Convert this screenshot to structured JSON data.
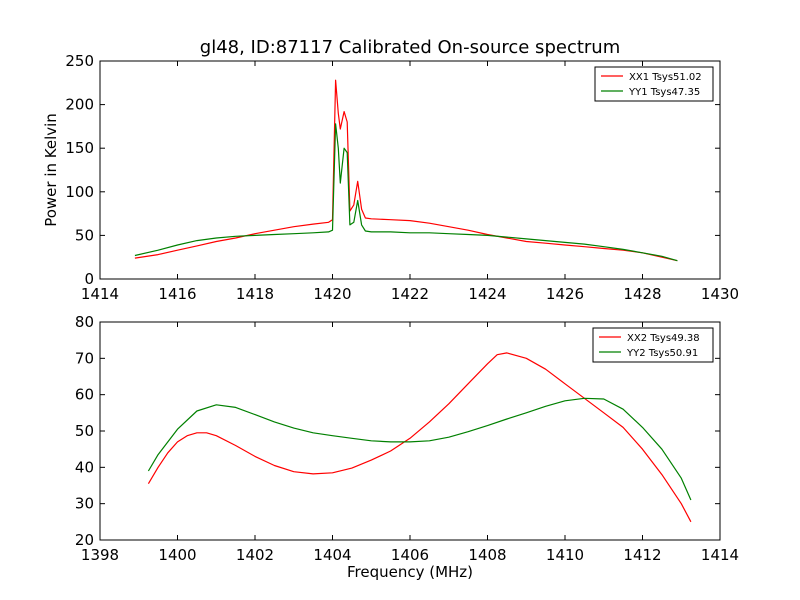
{
  "figure": {
    "title": "gl48, ID:87117 Calibrated On-source spectrum"
  },
  "chart_data": [
    {
      "type": "line",
      "title": "gl48, ID:87117 Calibrated On-source spectrum",
      "xlabel": "",
      "ylabel": "Power in Kelvin",
      "xlim": [
        1414,
        1430
      ],
      "ylim": [
        0,
        250
      ],
      "xticks": [
        1414,
        1416,
        1418,
        1420,
        1422,
        1424,
        1426,
        1428,
        1430
      ],
      "yticks": [
        0,
        50,
        100,
        150,
        200,
        250
      ],
      "grid": false,
      "legend_position": "top-right",
      "series": [
        {
          "name": "XX1 Tsys51.02",
          "color": "#ff0000",
          "x": [
            1414.9,
            1415.5,
            1416,
            1416.5,
            1417,
            1417.5,
            1418,
            1418.5,
            1419,
            1419.5,
            1419.9,
            1420.0,
            1420.08,
            1420.15,
            1420.2,
            1420.3,
            1420.38,
            1420.45,
            1420.55,
            1420.65,
            1420.75,
            1420.85,
            1421,
            1421.5,
            1422,
            1422.5,
            1423,
            1423.5,
            1424,
            1424.5,
            1425,
            1425.5,
            1426,
            1426.5,
            1427,
            1427.5,
            1428,
            1428.5,
            1428.9
          ],
          "values": [
            24,
            28,
            33,
            38,
            43,
            47,
            52,
            56,
            60,
            63,
            65,
            68,
            228,
            190,
            172,
            192,
            180,
            78,
            85,
            112,
            80,
            70,
            69,
            68,
            67,
            64,
            60,
            56,
            51,
            47,
            43,
            41,
            39,
            37,
            35,
            33,
            30,
            25,
            21
          ]
        },
        {
          "name": "YY1 Tsys47.35",
          "color": "#008000",
          "x": [
            1414.9,
            1415.5,
            1416,
            1416.5,
            1417,
            1417.5,
            1418,
            1418.5,
            1419,
            1419.5,
            1419.9,
            1420.0,
            1420.08,
            1420.15,
            1420.2,
            1420.3,
            1420.38,
            1420.45,
            1420.55,
            1420.65,
            1420.75,
            1420.85,
            1421,
            1421.5,
            1422,
            1422.5,
            1423,
            1423.5,
            1424,
            1424.5,
            1425,
            1425.5,
            1426,
            1426.5,
            1427,
            1427.5,
            1428,
            1428.5,
            1428.9
          ],
          "values": [
            27,
            33,
            39,
            44,
            47,
            49,
            50,
            51,
            52,
            53,
            54,
            56,
            178,
            150,
            110,
            150,
            145,
            62,
            65,
            90,
            62,
            55,
            54,
            54,
            53,
            53,
            52,
            51,
            50,
            48,
            46,
            44,
            42,
            40,
            37,
            34,
            30,
            26,
            21
          ]
        }
      ]
    },
    {
      "type": "line",
      "title": "",
      "xlabel": "Frequency (MHz)",
      "ylabel": "",
      "xlim": [
        1398,
        1414
      ],
      "ylim": [
        20,
        80
      ],
      "xticks": [
        1398,
        1400,
        1402,
        1404,
        1406,
        1408,
        1410,
        1412,
        1414
      ],
      "yticks": [
        20,
        30,
        40,
        50,
        60,
        70,
        80
      ],
      "grid": false,
      "legend_position": "top-right",
      "series": [
        {
          "name": "XX2 Tsys49.38",
          "color": "#ff0000",
          "x": [
            1399.25,
            1399.5,
            1399.75,
            1400,
            1400.25,
            1400.5,
            1400.75,
            1401,
            1401.5,
            1402,
            1402.5,
            1403,
            1403.5,
            1404,
            1404.5,
            1405,
            1405.5,
            1406,
            1406.5,
            1407,
            1407.5,
            1408,
            1408.25,
            1408.5,
            1409,
            1409.5,
            1410,
            1410.5,
            1411,
            1411.5,
            1412,
            1412.5,
            1413,
            1413.25
          ],
          "values": [
            35.5,
            40,
            44,
            47,
            48.7,
            49.5,
            49.5,
            48.7,
            46,
            43,
            40.5,
            38.8,
            38.2,
            38.5,
            39.8,
            42,
            44.5,
            48,
            52.5,
            57.5,
            63,
            68.5,
            71,
            71.5,
            70,
            67,
            63,
            59,
            55,
            51,
            45,
            38,
            30,
            25
          ]
        },
        {
          "name": "YY2 Tsys50.91",
          "color": "#008000",
          "x": [
            1399.25,
            1399.5,
            1400,
            1400.5,
            1401,
            1401.5,
            1402,
            1402.5,
            1403,
            1403.5,
            1404,
            1404.5,
            1405,
            1405.5,
            1406,
            1406.5,
            1407,
            1407.5,
            1408,
            1408.5,
            1409,
            1409.5,
            1410,
            1410.5,
            1411,
            1411.5,
            1412,
            1412.5,
            1413,
            1413.25
          ],
          "values": [
            39,
            43.5,
            50.5,
            55.5,
            57.2,
            56.5,
            54.5,
            52.5,
            50.8,
            49.5,
            48.7,
            48,
            47.3,
            47,
            47,
            47.3,
            48.3,
            49.8,
            51.5,
            53.3,
            55,
            56.8,
            58.3,
            59,
            58.8,
            56,
            51,
            45,
            37,
            31
          ]
        }
      ]
    }
  ]
}
